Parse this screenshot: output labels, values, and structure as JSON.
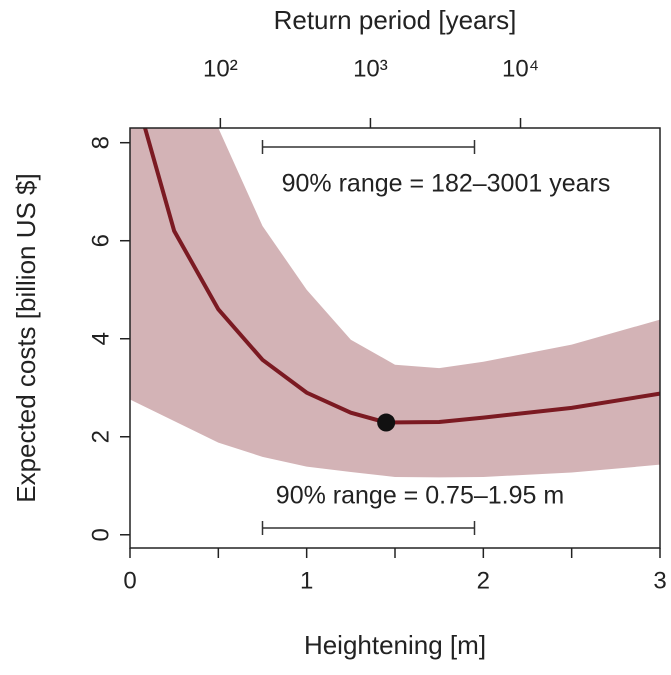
{
  "chart_data": {
    "type": "line",
    "xlabel": "Heightening [m]",
    "ylabel": "Expected costs [billion US $]",
    "x2label": "Return period [years]",
    "xlim": [
      0,
      3
    ],
    "ylim": [
      -0.27,
      8.3
    ],
    "xticks": [
      0,
      1,
      2,
      3
    ],
    "xminorticks": [
      0.5,
      1.5,
      2.5
    ],
    "yticks": [
      0,
      2,
      4,
      6,
      8
    ],
    "x2lim": [
      25,
      85000
    ],
    "x2log": true,
    "x2ticks": [
      {
        "value": 100,
        "label": "10²"
      },
      {
        "value": 1000,
        "label": "10³"
      },
      {
        "value": 10000,
        "label": "10⁴"
      }
    ],
    "series": [
      {
        "name": "Expected costs",
        "color": "#7b1a22",
        "x": [
          0.085,
          0.25,
          0.5,
          0.75,
          1,
          1.25,
          1.45,
          1.75,
          2,
          2.5,
          3
        ],
        "values": [
          8.3,
          6.2,
          4.6,
          3.57,
          2.9,
          2.49,
          2.29,
          2.3,
          2.39,
          2.59,
          2.88
        ]
      }
    ],
    "band": {
      "color": "#d3b3b6",
      "x": [
        0,
        0.5,
        0.75,
        1,
        1.25,
        1.5,
        1.75,
        2,
        2.5,
        3
      ],
      "upper": [
        8.3,
        8.3,
        6.3,
        5.0,
        3.98,
        3.47,
        3.4,
        3.53,
        3.88,
        4.39
      ],
      "lower": [
        2.76,
        1.88,
        1.59,
        1.39,
        1.28,
        1.18,
        1.17,
        1.18,
        1.27,
        1.43
      ]
    },
    "optimum": {
      "x": 1.45,
      "y": 2.29
    },
    "range_m": [
      0.75,
      1.95
    ],
    "annotation_top": "90% range = 182–3001 years",
    "annotation_bottom": "90% range = 0.75–1.95 m"
  }
}
